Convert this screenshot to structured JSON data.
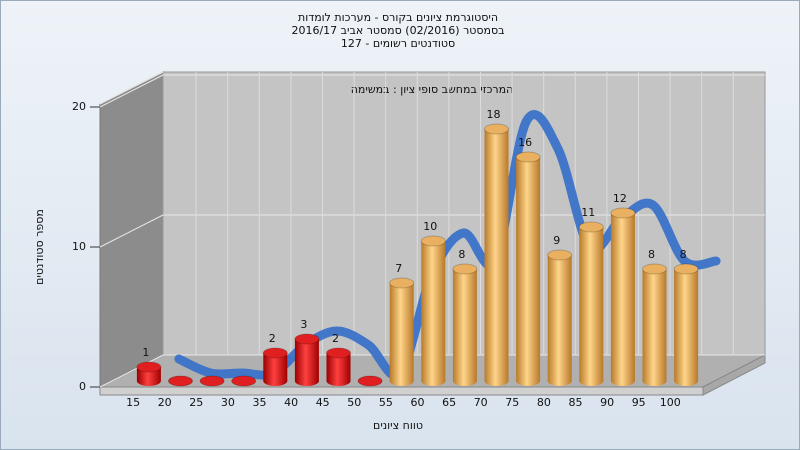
{
  "chart_data": {
    "type": "bar3d",
    "title": "היסטוגרמת ציונים בקורס - מערכות לומדות",
    "subtitle": "בסמסטר (02/2016) סמסטר אביב 2016/17",
    "subtitle2": "סטודנטים רשומים - 127",
    "annotation": "המרכזי במחשב סופי ציון : במשימה",
    "xlabel": "טווח ציונים",
    "ylabel": "מספר סטודנטים",
    "categories": [
      "15",
      "20",
      "25",
      "30",
      "35",
      "40",
      "45",
      "50",
      "55",
      "60",
      "65",
      "70",
      "75",
      "80",
      "85",
      "90",
      "95",
      "100"
    ],
    "values": [
      1,
      0,
      0,
      0,
      2,
      3,
      2,
      0,
      7,
      10,
      8,
      18,
      16,
      9,
      11,
      12,
      8,
      8
    ],
    "colors": [
      "red",
      "red",
      "red",
      "red",
      "red",
      "red",
      "red",
      "red",
      "orange",
      "orange",
      "orange",
      "orange",
      "orange",
      "orange",
      "orange",
      "orange",
      "orange",
      "orange"
    ],
    "trend_color": "#3a72c8",
    "ylim": [
      0,
      20
    ],
    "yticks": [
      0,
      10,
      20
    ],
    "grid": true
  }
}
